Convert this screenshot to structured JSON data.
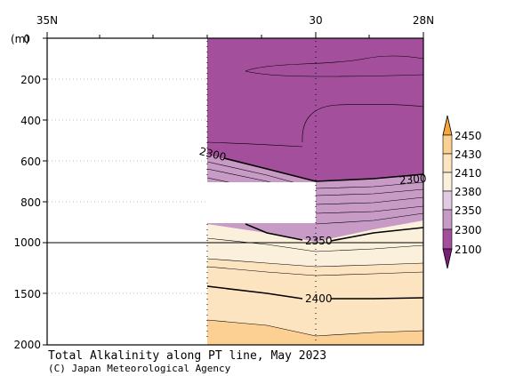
{
  "chart_data": {
    "type": "contour",
    "title": "Total Alkalinity along PT line, May 2023",
    "credit": "(C) Japan Meteorological Agency",
    "ylabel_unit": "(m)",
    "top_axis_labels": [
      "35N",
      "30",
      "28N"
    ],
    "y_ticks_upper": [
      "0",
      "200",
      "400",
      "600",
      "800",
      "1000"
    ],
    "y_ticks_lower": [
      "1500",
      "2000"
    ],
    "colorbar_levels": [
      "2450",
      "2430",
      "2410",
      "2380",
      "2350",
      "2300",
      "2100"
    ],
    "colors": {
      "lvl_2100_2300": "#a44f9c",
      "lvl_2300_2350": "#c89ac6",
      "lvl_2350_2380": "#e2cbe2",
      "lvl_2380_2410": "#fbf0dc",
      "lvl_2410_2430": "#fde4c0",
      "lvl_2430_2450": "#fcd092",
      "arrow_top": "#f6a43c",
      "arrow_bottom": "#7a1f78"
    },
    "contour_labels": [
      {
        "value": "2300",
        "where": "left-upper"
      },
      {
        "value": "2300",
        "where": "right"
      },
      {
        "value": "2350",
        "where": "center"
      },
      {
        "value": "2400",
        "where": "center-lower"
      }
    ]
  }
}
